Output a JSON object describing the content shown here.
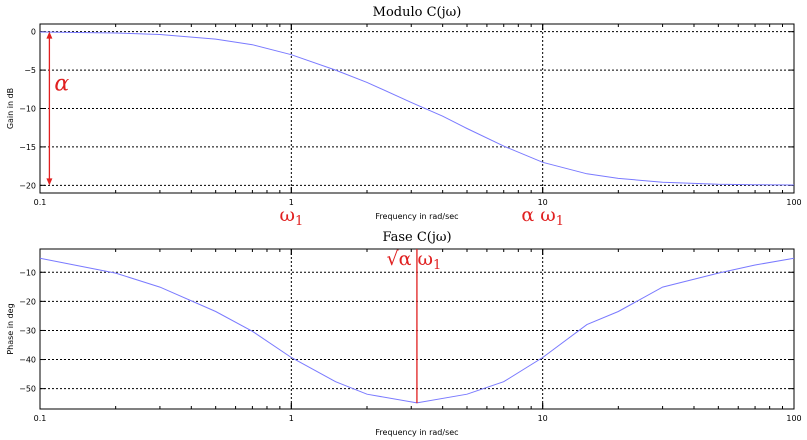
{
  "colors": {
    "curve": "#7a7aff",
    "annotation": "#e02020",
    "frame": "#000000",
    "grid": "#000000"
  },
  "chart_data": [
    {
      "type": "line",
      "title": "Modulo C(jω)",
      "xlabel": "Frequency in rad/sec",
      "ylabel": "Gain in dB",
      "x_scale": "log",
      "xlim": [
        0.1,
        100
      ],
      "ylim": [
        -21,
        1
      ],
      "x_ticks": [
        0.1,
        1,
        10,
        100
      ],
      "x_tick_labels": [
        "0.1",
        "1",
        "10",
        "100"
      ],
      "y_ticks": [
        0,
        -5,
        -10,
        -15,
        -20
      ],
      "y_tick_labels": [
        "0",
        "−5",
        "−10",
        "−15",
        "−20"
      ],
      "grid": true,
      "series": [
        {
          "x": [
            0.1,
            0.2,
            0.3,
            0.5,
            0.7,
            1,
            1.5,
            2,
            3,
            4,
            5,
            7,
            10,
            15,
            20,
            30,
            50,
            70,
            100
          ],
          "y": [
            -0.04,
            -0.17,
            -0.37,
            -0.97,
            -1.7,
            -3.0,
            -5.0,
            -6.6,
            -9.2,
            -11.0,
            -12.6,
            -14.9,
            -17.0,
            -18.5,
            -19.1,
            -19.6,
            -19.85,
            -19.92,
            -19.96
          ]
        }
      ],
      "annotations": [
        {
          "kind": "double-arrow",
          "x": 0.11,
          "y1": 0,
          "y2": -20,
          "label": "α"
        },
        {
          "kind": "x-label",
          "x": 1,
          "label_main": "ω",
          "label_sub": "1"
        },
        {
          "kind": "x-label",
          "x": 10,
          "label_main": "α ω",
          "label_sub": "1"
        }
      ]
    },
    {
      "type": "line",
      "title": "Fase C(jω)",
      "xlabel": "Frequency in rad/sec",
      "ylabel": "Phase in deg",
      "x_scale": "log",
      "xlim": [
        0.1,
        100
      ],
      "ylim": [
        -57,
        -2
      ],
      "x_ticks": [
        0.1,
        1,
        10,
        100
      ],
      "x_tick_labels": [
        "0.1",
        "1",
        "10",
        "100"
      ],
      "y_ticks": [
        -10,
        -20,
        -30,
        -40,
        -50
      ],
      "y_tick_labels": [
        "−10",
        "−20",
        "−30",
        "−40",
        "−50"
      ],
      "grid": true,
      "series": [
        {
          "x": [
            0.1,
            0.2,
            0.3,
            0.5,
            0.7,
            1,
            1.5,
            2,
            3.16,
            5,
            7,
            10,
            15,
            20,
            30,
            50,
            70,
            100
          ],
          "y": [
            -5.2,
            -10.3,
            -15.1,
            -23.5,
            -30.3,
            -39.3,
            -47.6,
            -51.9,
            -54.9,
            -51.9,
            -47.6,
            -39.3,
            -28.0,
            -23.5,
            -15.1,
            -10.3,
            -7.5,
            -5.2
          ]
        }
      ],
      "annotations": [
        {
          "kind": "vline",
          "x": 3.16,
          "y_top": -2,
          "y_bottom": -55,
          "label_main": "√α ω",
          "label_sub": "1"
        }
      ]
    }
  ]
}
